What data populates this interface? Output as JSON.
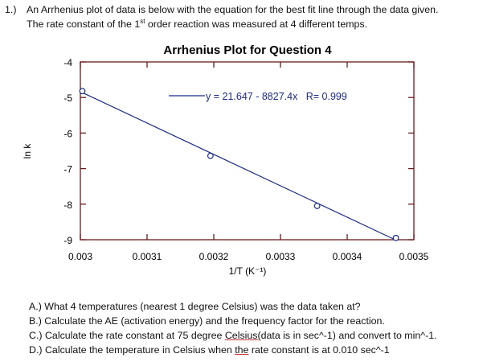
{
  "question": {
    "number": "1.)",
    "line1": "An Arrhenius plot of data is below with the equation for the best fit line through the data given.",
    "line2_pre": "The rate constant of the 1",
    "line2_sup": "st",
    "line2_post": " order reaction was measured at 4 different temps."
  },
  "chart_data": {
    "type": "scatter",
    "title": "Arrhenius Plot for Question 4",
    "xlabel": "1/T (K⁻¹)",
    "ylabel": "ln k",
    "xlim": [
      0.003,
      0.0035
    ],
    "ylim": [
      -9,
      -4
    ],
    "x_ticks": [
      "0.003",
      "0.0031",
      "0.0032",
      "0.0033",
      "0.0034",
      "0.0035"
    ],
    "y_ticks": [
      "-4",
      "-5",
      "-6",
      "-7",
      "-8",
      "-9"
    ],
    "grid": false,
    "points": [
      {
        "x": 0.003003,
        "y": -4.82
      },
      {
        "x": 0.003195,
        "y": -6.64
      },
      {
        "x": 0.003355,
        "y": -8.05
      },
      {
        "x": 0.003473,
        "y": -8.95
      }
    ],
    "fit": {
      "intercept": 21.647,
      "slope": -8827.4,
      "x_range": [
        0.003,
        0.003475
      ]
    },
    "legend_text": "y = 21.647 - 8827.4x   R= 0.999",
    "legend_placement": "top-right",
    "colors": {
      "series": "#1a2a8a",
      "axes": "#6b1a1a"
    }
  },
  "parts": [
    {
      "label": "A.)",
      "text": "What 4 temperatures (nearest 1 degree Celsius) was the data taken at?"
    },
    {
      "label": "B.)",
      "text": "Calculate the AE (activation energy) and the frequency factor for the reaction."
    },
    {
      "label": "C.)",
      "text_pre": "Calculate the rate constant at 75 degree ",
      "text_u": "Celsius(",
      "text_post": "data is in sec^-1) and convert to min^-1."
    },
    {
      "label": "D.)",
      "text_pre": "Calculate the temperature in Celsius when ",
      "text_u": "the",
      "text_post": " rate constant is at 0.010 sec^-1"
    }
  ]
}
